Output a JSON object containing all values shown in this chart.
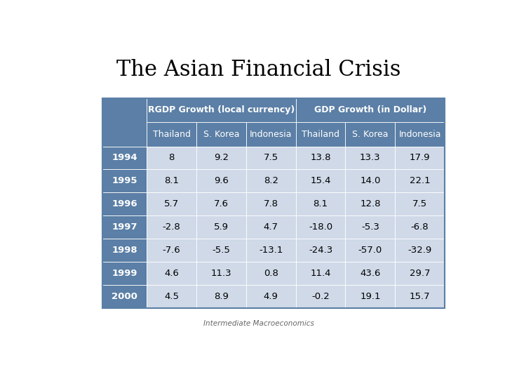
{
  "title": "The Asian Financial Crisis",
  "subtitle": "Intermediate Macroeconomics",
  "header1": "RGDP Growth (local currency)",
  "header2": "GDP Growth (in Dollar)",
  "sub_headers": [
    "Thailand",
    "S. Korea",
    "Indonesia",
    "Thailand",
    "S. Korea",
    "Indonesia"
  ],
  "years": [
    "1994",
    "1995",
    "1996",
    "1997",
    "1998",
    "1999",
    "2000"
  ],
  "data": [
    [
      8,
      9.2,
      7.5,
      13.8,
      13.3,
      17.9
    ],
    [
      8.1,
      9.6,
      8.2,
      15.4,
      14.0,
      22.1
    ],
    [
      5.7,
      7.6,
      7.8,
      8.1,
      12.8,
      7.5
    ],
    [
      -2.8,
      5.9,
      4.7,
      -18.0,
      -5.3,
      -6.8
    ],
    [
      -7.6,
      -5.5,
      -13.1,
      -24.3,
      -57.0,
      -32.9
    ],
    [
      4.6,
      11.3,
      0.8,
      11.4,
      43.6,
      29.7
    ],
    [
      4.5,
      8.9,
      4.9,
      -0.2,
      19.1,
      15.7
    ]
  ],
  "data_str": [
    [
      "8",
      "9.2",
      "7.5",
      "13.8",
      "13.3",
      "17.9"
    ],
    [
      "8.1",
      "9.6",
      "8.2",
      "15.4",
      "14.0",
      "22.1"
    ],
    [
      "5.7",
      "7.6",
      "7.8",
      "8.1",
      "12.8",
      "7.5"
    ],
    [
      "-2.8",
      "5.9",
      "4.7",
      "-18.0",
      "-5.3",
      "-6.8"
    ],
    [
      "-7.6",
      "-5.5",
      "-13.1",
      "-24.3",
      "-57.0",
      "-32.9"
    ],
    [
      "4.6",
      "11.3",
      "0.8",
      "11.4",
      "43.6",
      "29.7"
    ],
    [
      "4.5",
      "8.9",
      "4.9",
      "-0.2",
      "19.1",
      "15.7"
    ]
  ],
  "header_bg": "#5b7fa6",
  "header_text": "#ffffff",
  "year_bg": "#5b7fa6",
  "year_text": "#ffffff",
  "row_bg": "#cfd9e8",
  "data_text": "#000000",
  "title_color": "#000000",
  "subtitle_color": "#666666",
  "background_color": "#ffffff",
  "title_fontsize": 22,
  "header_fontsize": 9,
  "data_fontsize": 9.5,
  "year_fontsize": 9.5,
  "subtitle_fontsize": 7.5
}
